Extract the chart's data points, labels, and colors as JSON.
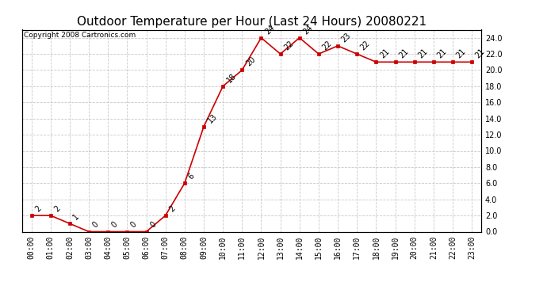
{
  "title": "Outdoor Temperature per Hour (Last 24 Hours) 20080221",
  "copyright_text": "Copyright 2008 Cartronics.com",
  "hours": [
    "00:00",
    "01:00",
    "02:00",
    "03:00",
    "04:00",
    "05:00",
    "06:00",
    "07:00",
    "08:00",
    "09:00",
    "10:00",
    "11:00",
    "12:00",
    "13:00",
    "14:00",
    "15:00",
    "16:00",
    "17:00",
    "18:00",
    "19:00",
    "20:00",
    "21:00",
    "22:00",
    "23:00"
  ],
  "temps": [
    2,
    2,
    1,
    0,
    0,
    0,
    0,
    2,
    6,
    13,
    18,
    20,
    24,
    22,
    24,
    22,
    23,
    22,
    21,
    21,
    21,
    21,
    21,
    21
  ],
  "line_color": "#cc0000",
  "marker_color": "#cc0000",
  "bg_color": "#ffffff",
  "grid_color": "#c8c8c8",
  "ylim": [
    0,
    25
  ],
  "yticks": [
    0.0,
    2.0,
    4.0,
    6.0,
    8.0,
    10.0,
    12.0,
    14.0,
    16.0,
    18.0,
    20.0,
    22.0,
    24.0
  ],
  "title_fontsize": 11,
  "label_fontsize": 7,
  "annotation_fontsize": 7,
  "copyright_fontsize": 6.5
}
